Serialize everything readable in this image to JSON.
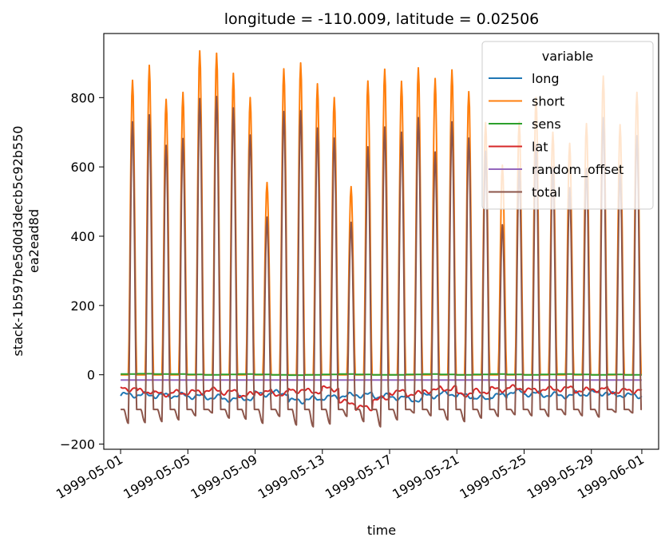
{
  "chart_data": {
    "type": "line",
    "title": "longitude = -110.009, latitude = 0.02506",
    "xlabel": "time",
    "ylabel": "stack-1b597be5d0d3decb5c92b550\nea2ead8d",
    "x_start": "1999-05-01",
    "x_end": "1999-06-01",
    "xlim": [
      "1999-04-30",
      "1999-06-02"
    ],
    "ylim": [
      -215,
      985
    ],
    "yticks": [
      -200,
      0,
      200,
      400,
      600,
      800
    ],
    "ytick_labels": [
      "−200",
      "0",
      "200",
      "400",
      "600",
      "800"
    ],
    "xticks": [
      "1999-05-01",
      "1999-05-05",
      "1999-05-09",
      "1999-05-13",
      "1999-05-17",
      "1999-05-21",
      "1999-05-25",
      "1999-05-29",
      "1999-06-01"
    ],
    "legend": {
      "title": "variable",
      "location": "top-right"
    },
    "daily_peaks": {
      "short": [
        850,
        893,
        795,
        815,
        935,
        928,
        870,
        800,
        555,
        883,
        900,
        840,
        800,
        543,
        848,
        882,
        847,
        886,
        855,
        880,
        817,
        728,
        605,
        730,
        800,
        700,
        668,
        725,
        862,
        722,
        815
      ],
      "total": [
        730,
        750,
        662,
        682,
        797,
        803,
        770,
        692,
        455,
        760,
        762,
        712,
        683,
        440,
        658,
        715,
        700,
        742,
        643,
        730,
        683,
        645,
        433,
        595,
        663,
        600,
        540,
        595,
        742,
        590,
        690
      ]
    },
    "daily_nights": {
      "total": [
        -140,
        -138,
        -135,
        -130,
        -118,
        -110,
        -125,
        -128,
        -140,
        -120,
        -145,
        -150,
        -142,
        -120,
        -135,
        -150,
        -130,
        -110,
        -118,
        -130,
        -135,
        -125,
        -120,
        -115,
        -118,
        -120,
        -115,
        -118,
        -122,
        -108,
        -110
      ]
    },
    "series": [
      {
        "name": "long",
        "color": "#1f77b4",
        "values": [
          -58,
          -58,
          -60,
          -60,
          -62,
          -65,
          -70,
          -68,
          -55,
          -52,
          -75,
          -70,
          -65,
          -60,
          -58,
          -62,
          -65,
          -72,
          -60,
          -55,
          -60,
          -68,
          -60,
          -50,
          -55,
          -58,
          -60,
          -55,
          -52,
          -58,
          -60
        ]
      },
      {
        "name": "short",
        "color": "#ff7f0e",
        "values": [
          850,
          893,
          795,
          815,
          935,
          928,
          870,
          800,
          555,
          883,
          900,
          840,
          800,
          543,
          848,
          882,
          847,
          886,
          855,
          880,
          817,
          728,
          605,
          730,
          800,
          700,
          668,
          725,
          862,
          722,
          815
        ]
      },
      {
        "name": "sens",
        "color": "#2ca02c",
        "values": [
          2,
          3,
          2,
          2,
          1,
          0,
          1,
          2,
          1,
          0,
          -1,
          0,
          1,
          2,
          1,
          0,
          0,
          1,
          2,
          1,
          0,
          1,
          2,
          1,
          0,
          1,
          2,
          1,
          0,
          1,
          0
        ]
      },
      {
        "name": "lat",
        "color": "#d62728",
        "values": [
          -40,
          -48,
          -55,
          -52,
          -50,
          -45,
          -50,
          -58,
          -50,
          -55,
          -45,
          -48,
          -40,
          -80,
          -95,
          -70,
          -50,
          -55,
          -45,
          -40,
          -55,
          -48,
          -42,
          -38,
          -45,
          -42,
          -40,
          -45,
          -42,
          -48,
          -45
        ]
      },
      {
        "name": "random_offset",
        "color": "#9467bd",
        "values": [
          -15,
          -15,
          -15,
          -15,
          -15,
          -15,
          -15,
          -15,
          -15,
          -15,
          -15,
          -15,
          -15,
          -15,
          -15,
          -15,
          -15,
          -15,
          -15,
          -15,
          -15,
          -15,
          -15,
          -15,
          -15,
          -15,
          -15,
          -15,
          -15,
          -15,
          -15
        ]
      },
      {
        "name": "total",
        "color": "#8c564b",
        "values": [
          730,
          750,
          662,
          682,
          797,
          803,
          770,
          692,
          455,
          760,
          762,
          712,
          683,
          440,
          658,
          715,
          700,
          742,
          643,
          730,
          683,
          645,
          433,
          595,
          663,
          600,
          540,
          595,
          742,
          590,
          690
        ]
      }
    ]
  }
}
